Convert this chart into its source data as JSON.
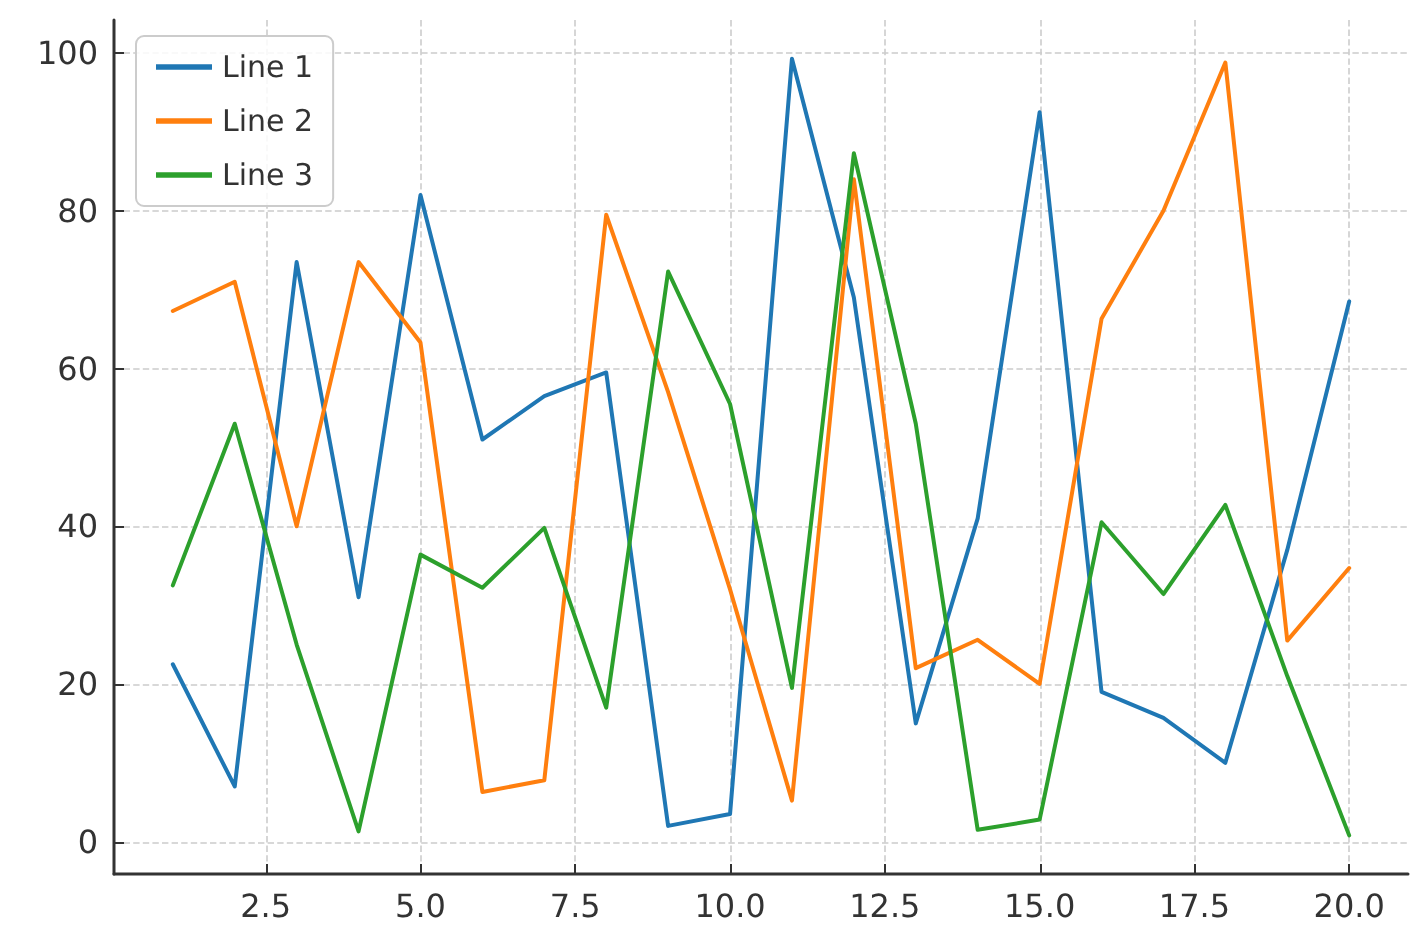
{
  "chart_data": {
    "type": "line",
    "x": [
      1,
      2,
      3,
      4,
      5,
      6,
      7,
      8,
      9,
      10,
      11,
      12,
      13,
      14,
      15,
      16,
      17,
      18,
      19,
      20
    ],
    "series": [
      {
        "name": "Line 1",
        "color": "#1f77b4",
        "values": [
          22.5,
          7,
          73.5,
          31,
          82,
          51,
          56.5,
          59.5,
          2,
          3.5,
          99.3,
          69,
          15,
          41,
          92.5,
          19,
          15.7,
          10,
          37,
          68.5
        ]
      },
      {
        "name": "Line 2",
        "color": "#ff7f0e",
        "values": [
          67.3,
          71,
          40,
          73.5,
          63.3,
          6.3,
          7.8,
          79.5,
          57,
          32,
          5.2,
          84,
          22,
          25.6,
          20,
          66.3,
          80,
          98.8,
          25.5,
          34.7
        ]
      },
      {
        "name": "Line 3",
        "color": "#2ca02c",
        "values": [
          32.5,
          53,
          25,
          1.3,
          36.4,
          32.2,
          39.8,
          17,
          72.3,
          55.5,
          19.5,
          87.3,
          53,
          1.5,
          2.8,
          40.5,
          31.4,
          42.7,
          21,
          0.8
        ]
      }
    ],
    "xlim": [
      0.05,
      20.95
    ],
    "ylim": [
      -4.1,
      104.2
    ],
    "xticks": [
      {
        "value": 2.5,
        "label": "2.5"
      },
      {
        "value": 5,
        "label": "5.0"
      },
      {
        "value": 7.5,
        "label": "7.5"
      },
      {
        "value": 10,
        "label": "10.0"
      },
      {
        "value": 12.5,
        "label": "12.5"
      },
      {
        "value": 15,
        "label": "15.0"
      },
      {
        "value": 17.5,
        "label": "17.5"
      },
      {
        "value": 20,
        "label": "20.0"
      }
    ],
    "yticks": [
      0,
      20,
      40,
      60,
      80,
      100
    ],
    "grid": true,
    "legend": "top left",
    "marker": "none",
    "line_style": "solid"
  }
}
